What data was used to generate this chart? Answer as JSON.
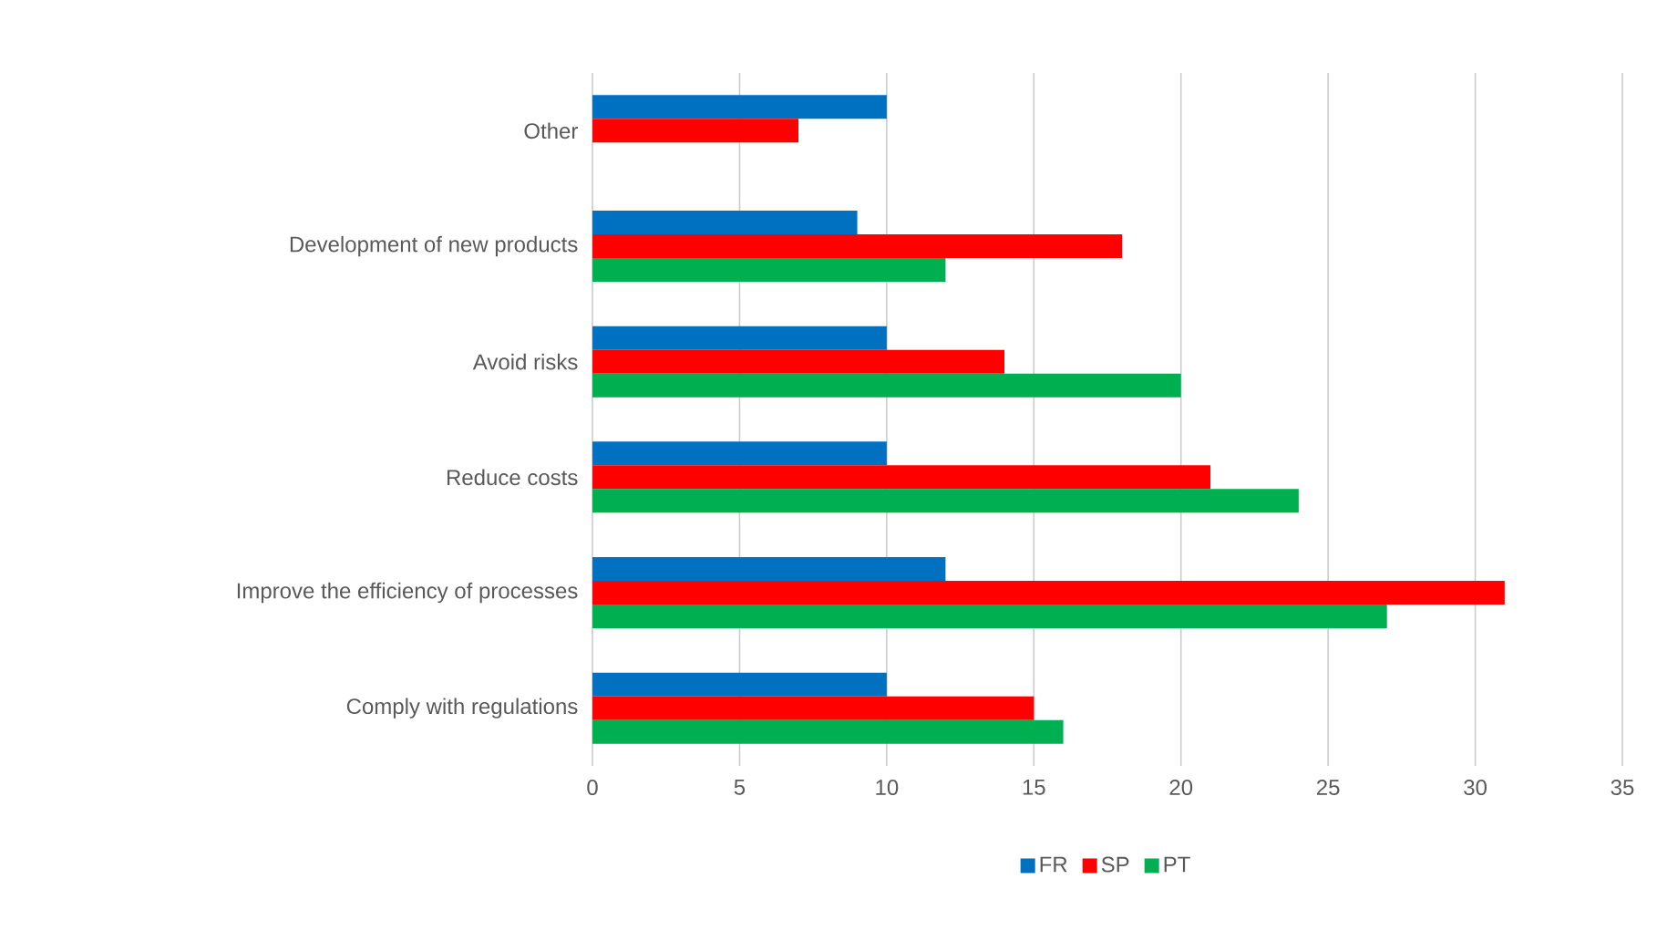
{
  "chart_data": {
    "type": "bar",
    "orientation": "horizontal",
    "categories": [
      "Other",
      "Development of new products",
      "Avoid risks",
      "Reduce costs",
      "Improve the efficiency of processes",
      "Comply with regulations"
    ],
    "series": [
      {
        "name": "FR",
        "color": "#0070c0",
        "values": [
          10,
          9,
          10,
          10,
          12,
          10
        ]
      },
      {
        "name": "SP",
        "color": "#ff0000",
        "values": [
          7,
          18,
          14,
          21,
          31,
          15
        ]
      },
      {
        "name": "PT",
        "color": "#00b050",
        "values": [
          null,
          12,
          20,
          24,
          27,
          16
        ]
      }
    ],
    "xlim": [
      0,
      35
    ],
    "xticks": [
      0,
      5,
      10,
      15,
      20,
      25,
      30,
      35
    ],
    "grid": "x",
    "legend": "bottom"
  }
}
